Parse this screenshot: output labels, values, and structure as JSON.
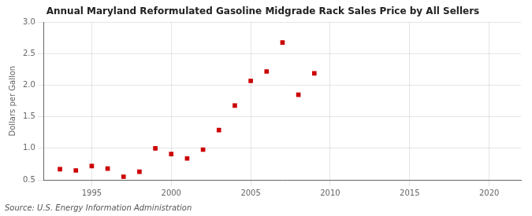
{
  "chart_data": {
    "type": "scatter",
    "title": "Annual Maryland Reformulated Gasoline Midgrade Rack Sales Price by All Sellers",
    "ylabel": "Dollars per Gallon",
    "annotation": "Source: U.S. Energy Information Administration",
    "x": [
      1993,
      1994,
      1995,
      1996,
      1997,
      1998,
      1999,
      2000,
      2001,
      2002,
      2003,
      2004,
      2005,
      2006,
      2007,
      2008,
      2009,
      2010
    ],
    "values": [
      0.67,
      0.65,
      0.72,
      0.68,
      0.55,
      0.63,
      1.0,
      0.91,
      0.84,
      0.98,
      1.29,
      1.68,
      2.07,
      2.22,
      2.68,
      1.85,
      2.19,
      null
    ],
    "color": "#cc0000",
    "marker": "square",
    "xlim": [
      1992,
      2022
    ],
    "xticks": [
      1995,
      2000,
      2005,
      2010,
      2015,
      2020
    ],
    "ylim": [
      0.5,
      3.0
    ],
    "yticks": [
      0.5,
      {
        "value": 1,
        "label": "1.0"
      },
      1.5,
      {
        "value": 2,
        "label": "2.0"
      },
      2.5,
      {
        "value": 3,
        "label": "3.0"
      }
    ],
    "grid": true
  }
}
